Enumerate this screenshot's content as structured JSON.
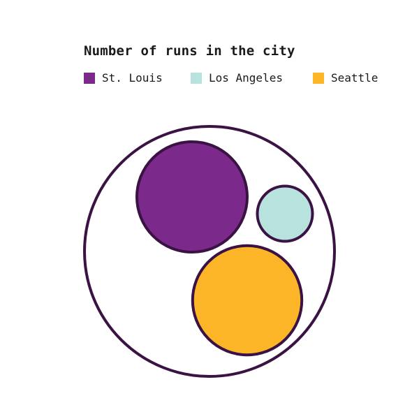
{
  "chart_data": {
    "type": "bubble-pack",
    "title": "Number of runs in the city",
    "legend_position": "top-left",
    "grid": false,
    "series": [
      {
        "name": "St. Louis",
        "value": 100,
        "color": "#7b2a8b"
      },
      {
        "name": "Los Angeles",
        "value": 25,
        "color": "#b8e2de"
      },
      {
        "name": "Seattle",
        "value": 98,
        "color": "#fdb528"
      }
    ],
    "stroke_color": "#3a1244"
  }
}
